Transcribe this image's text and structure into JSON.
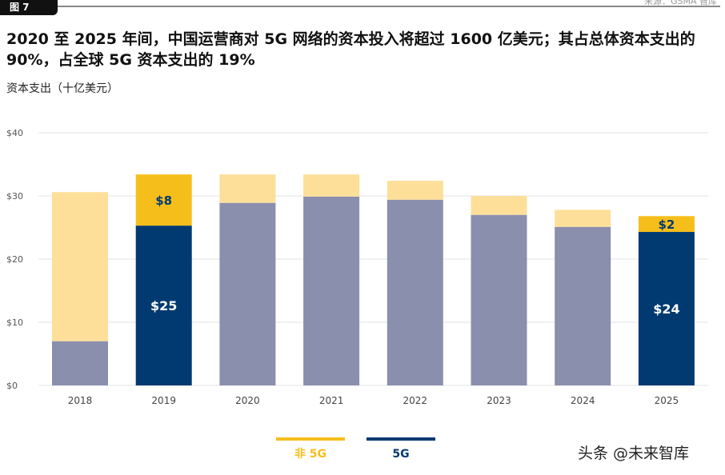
{
  "figure_tag": "图 7",
  "source": "来源：GSMA 智库",
  "watermark": "头条 @未来智库",
  "chart_data": {
    "type": "bar",
    "stacked": true,
    "title": "2020 至 2025 年间，中国运营商对 5G 网络的资本投入将超过 1600 亿美元；其占总体资本支出的 90%，占全球 5G 资本支出的 19%",
    "ylabel": "资本支出（十亿美元）",
    "xlabel": "",
    "ylim": [
      0,
      40
    ],
    "yticks": [
      0,
      10,
      20,
      30,
      40
    ],
    "ytick_labels": [
      "$0",
      "$10",
      "$20",
      "$30",
      "$40"
    ],
    "grid": true,
    "categories": [
      "2018",
      "2019",
      "2020",
      "2021",
      "2022",
      "2023",
      "2024",
      "2025"
    ],
    "series": [
      {
        "name": "5G",
        "values": [
          7.0,
          25.3,
          28.9,
          29.9,
          29.4,
          27.0,
          25.1,
          24.3
        ],
        "color": "#8a8fae",
        "highlight_color": "#003a70"
      },
      {
        "name": "非 5G",
        "values": [
          23.6,
          8.1,
          4.5,
          3.5,
          3.0,
          3.0,
          2.7,
          2.5
        ],
        "color": "#fddf9a",
        "highlight_color": "#f6be1b"
      }
    ],
    "highlight_categories": [
      "2019",
      "2025"
    ],
    "data_labels": [
      {
        "category": "2019",
        "series": "非 5G",
        "text": "$8"
      },
      {
        "category": "2019",
        "series": "5G",
        "text": "$25"
      },
      {
        "category": "2025",
        "series": "非 5G",
        "text": "$2"
      },
      {
        "category": "2025",
        "series": "5G",
        "text": "$24"
      }
    ],
    "legend": {
      "placement": "bottom",
      "items": [
        {
          "label": "非 5G",
          "color": "#f6be1b"
        },
        {
          "label": "5G",
          "color": "#003a70"
        }
      ]
    }
  }
}
